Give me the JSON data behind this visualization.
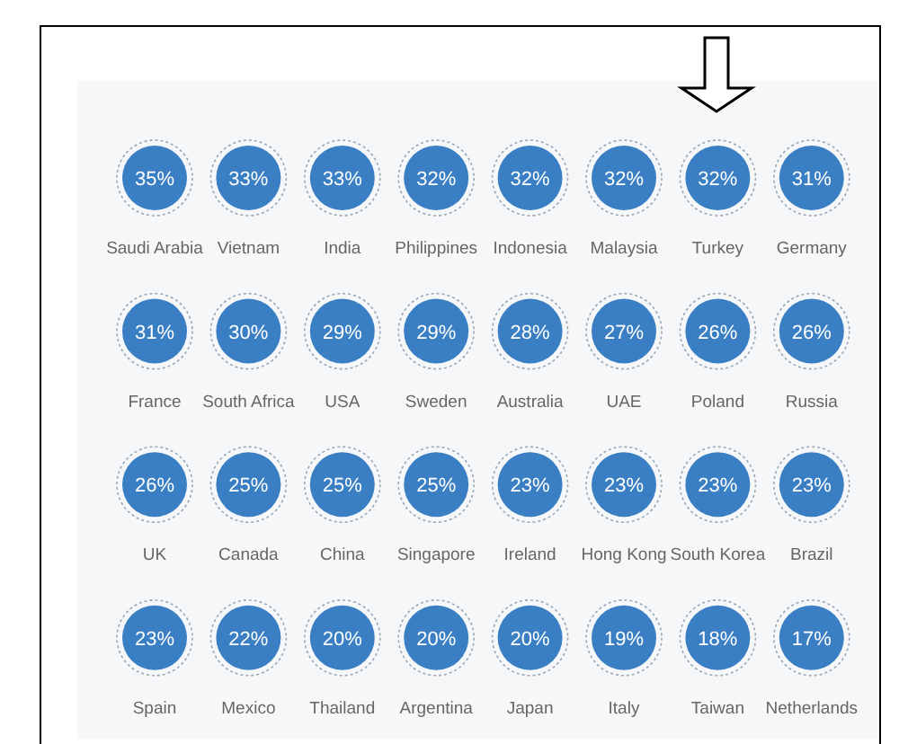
{
  "chart_data": {
    "type": "other",
    "categories": [
      "Saudi Arabia",
      "Vietnam",
      "India",
      "Philippines",
      "Indonesia",
      "Malaysia",
      "Turkey",
      "Germany",
      "France",
      "South Africa",
      "USA",
      "Sweden",
      "Australia",
      "UAE",
      "Poland",
      "Russia",
      "UK",
      "Canada",
      "China",
      "Singapore",
      "Ireland",
      "Hong Kong",
      "South Korea",
      "Brazil",
      "Spain",
      "Mexico",
      "Thailand",
      "Argentina",
      "Japan",
      "Italy",
      "Taiwan",
      "Netherlands"
    ],
    "values": [
      35,
      33,
      33,
      32,
      32,
      32,
      32,
      31,
      31,
      30,
      29,
      29,
      28,
      27,
      26,
      26,
      26,
      25,
      25,
      25,
      23,
      23,
      23,
      23,
      23,
      22,
      20,
      20,
      20,
      19,
      18,
      17
    ],
    "value_labels": [
      "35%",
      "33%",
      "33%",
      "32%",
      "32%",
      "32%",
      "32%",
      "31%",
      "31%",
      "30%",
      "29%",
      "29%",
      "28%",
      "27%",
      "26%",
      "26%",
      "26%",
      "25%",
      "25%",
      "25%",
      "23%",
      "23%",
      "23%",
      "23%",
      "23%",
      "22%",
      "20%",
      "20%",
      "20%",
      "19%",
      "18%",
      "17%"
    ],
    "color": "#3a7fc4"
  }
}
